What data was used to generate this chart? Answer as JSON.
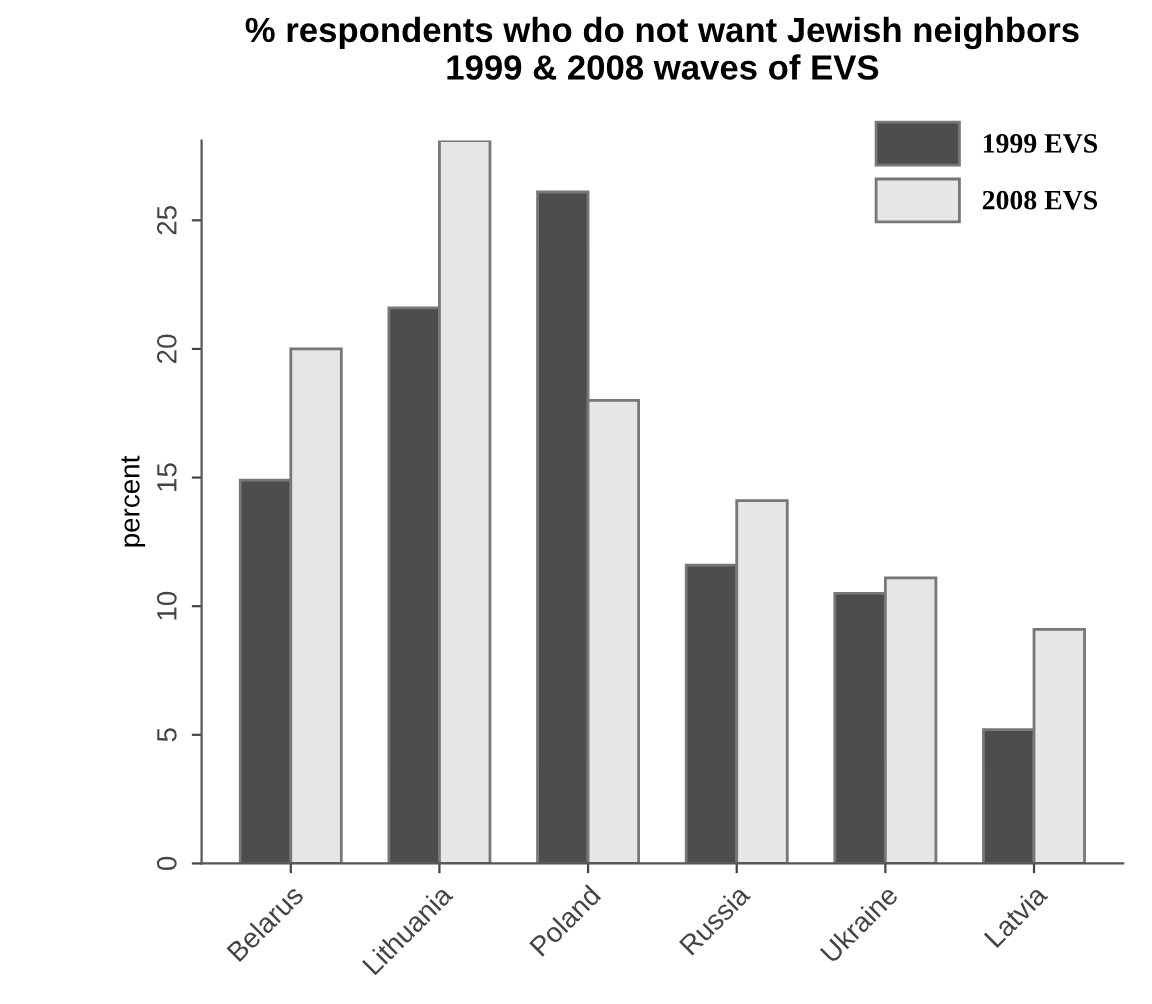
{
  "chart_data": {
    "type": "bar",
    "title": "% respondents who do not want Jewish neighbors\n1999 & 2008 waves of EVS",
    "ylabel": "percent",
    "categories": [
      "Belarus",
      "Lithuania",
      "Poland",
      "Russia",
      "Ukraine",
      "Latvia"
    ],
    "series": [
      {
        "name": "1999 EVS",
        "color": "#4d4d4d",
        "values": [
          14.9,
          21.6,
          26.1,
          11.6,
          10.5,
          5.2
        ]
      },
      {
        "name": "2008 EVS",
        "color": "#e6e6e6",
        "values": [
          20.0,
          28.1,
          18.0,
          14.1,
          11.1,
          9.1
        ]
      }
    ],
    "ylim": [
      0,
      28.1
    ],
    "yticks": [
      0,
      5,
      10,
      15,
      20,
      25
    ],
    "grid": false,
    "legend": "top right"
  }
}
